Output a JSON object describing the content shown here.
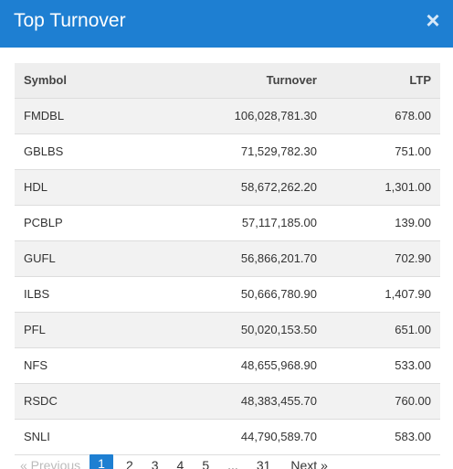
{
  "header": {
    "title": "Top Turnover",
    "close_icon": "×"
  },
  "table": {
    "columns": [
      "Symbol",
      "Turnover",
      "LTP"
    ],
    "rows": [
      {
        "symbol": "FMDBL",
        "turnover": "106,028,781.30",
        "ltp": "678.00"
      },
      {
        "symbol": "GBLBS",
        "turnover": "71,529,782.30",
        "ltp": "751.00"
      },
      {
        "symbol": "HDL",
        "turnover": "58,672,262.20",
        "ltp": "1,301.00"
      },
      {
        "symbol": "PCBLP",
        "turnover": "57,117,185.00",
        "ltp": "139.00"
      },
      {
        "symbol": "GUFL",
        "turnover": "56,866,201.70",
        "ltp": "702.90"
      },
      {
        "symbol": "ILBS",
        "turnover": "50,666,780.90",
        "ltp": "1,407.90"
      },
      {
        "symbol": "PFL",
        "turnover": "50,020,153.50",
        "ltp": "651.00"
      },
      {
        "symbol": "NFS",
        "turnover": "48,655,968.90",
        "ltp": "533.00"
      },
      {
        "symbol": "RSDC",
        "turnover": "48,383,455.70",
        "ltp": "760.00"
      },
      {
        "symbol": "SNLI",
        "turnover": "44,790,589.70",
        "ltp": "583.00"
      }
    ]
  },
  "pagination": {
    "previous": "«   Previous",
    "pages": [
      "1",
      "2",
      "3",
      "4",
      "5"
    ],
    "ellipsis": "...",
    "last": "31",
    "next": "Next   »",
    "active_page": "1"
  },
  "colors": {
    "header_bg": "#1e7fd2",
    "active_page_bg": "#1e7fd2"
  }
}
